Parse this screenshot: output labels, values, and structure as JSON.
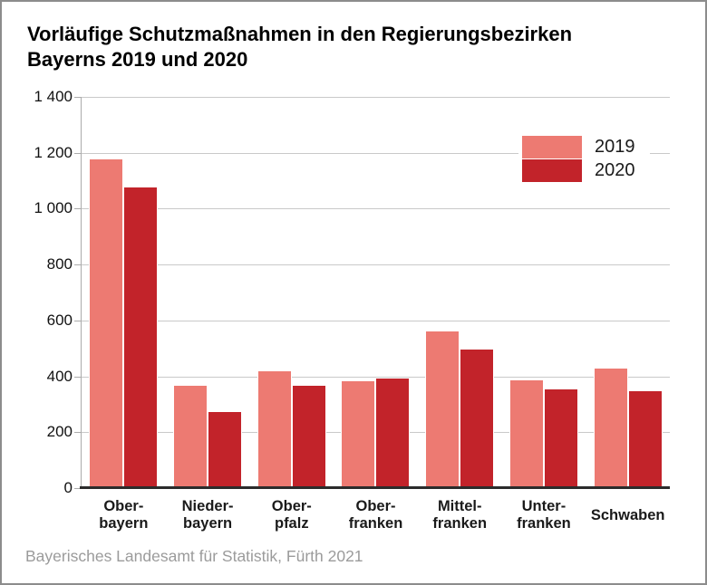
{
  "colors": {
    "series_2019": "#ED7A72",
    "series_2020": "#C2232A",
    "grid": "#C9C9C9",
    "axis": "#ABABAB",
    "baseline": "#2B2B2B",
    "label_text": "#1A1A1A",
    "source_text": "#9B9B9B",
    "canvas_border": "#8C8C8C"
  },
  "chart_data": {
    "type": "bar",
    "title": "Vorläufige Schutzmaßnahmen in den Regierungsbezirken Bayerns 2019 und 2020",
    "title_lines": [
      "Vorläufige Schutzmaßnahmen in den Regierungsbezirken",
      "Bayerns 2019 und 2020"
    ],
    "categories": [
      [
        "Ober-",
        "bayern"
      ],
      [
        "Nieder-",
        "bayern"
      ],
      [
        "Ober-",
        "pfalz"
      ],
      [
        "Ober-",
        "franken"
      ],
      [
        "Mittel-",
        "franken"
      ],
      [
        "Unter-",
        "franken"
      ],
      [
        "Schwaben"
      ]
    ],
    "series": [
      {
        "name": "2019",
        "color": "#ED7A72",
        "values": [
          1180,
          370,
          420,
          385,
          565,
          390,
          430
        ]
      },
      {
        "name": "2020",
        "color": "#C2232A",
        "values": [
          1080,
          275,
          370,
          395,
          500,
          355,
          350
        ]
      }
    ],
    "ylim": [
      0,
      1400
    ],
    "ytick_step": 200,
    "yticks": [
      {
        "v": 0,
        "label": "0"
      },
      {
        "v": 200,
        "label": "200"
      },
      {
        "v": 400,
        "label": "400"
      },
      {
        "v": 600,
        "label": "600"
      },
      {
        "v": 800,
        "label": "800"
      },
      {
        "v": 1000,
        "label": "1 000"
      },
      {
        "v": 1200,
        "label": "1 200"
      },
      {
        "v": 1400,
        "label": "1 400"
      }
    ],
    "grid": true,
    "legend_position": "top-right",
    "source": "Bayerisches Landesamt für Statistik, Fürth 2021"
  }
}
